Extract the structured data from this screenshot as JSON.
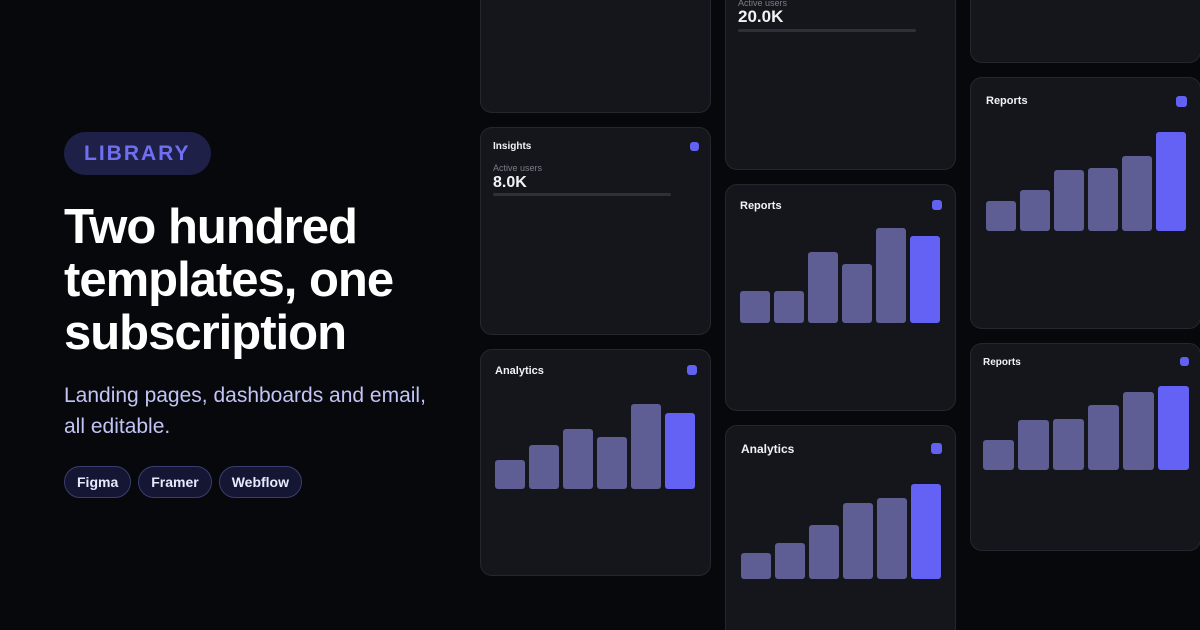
{
  "hero": {
    "badge": "LIBRARY",
    "headline": "Two hundred templates, one subscription",
    "subtitle": "Landing pages, dashboards and email, all editable.",
    "tags": [
      "Figma",
      "Framer",
      "Webflow"
    ]
  },
  "colors": {
    "background": "#07080c",
    "accent": "#6461f5",
    "bar": "#5e5d94",
    "card": "#15161b"
  },
  "cards": [
    {
      "id": "c1"
    },
    {
      "id": "c2",
      "title": "Insights",
      "metric_label": "Active users",
      "metric_value": "8.0K"
    },
    {
      "id": "c3",
      "title": "Analytics",
      "chart_data": {
        "type": "bar",
        "values": [
          30,
          46,
          62,
          54,
          88,
          79
        ]
      }
    },
    {
      "id": "c4",
      "metric_label": "Active users",
      "metric_value": "20.0K"
    },
    {
      "id": "c5",
      "title": "Reports",
      "chart_data": {
        "type": "bar",
        "values": [
          30,
          30,
          67,
          56,
          90,
          82
        ]
      }
    },
    {
      "id": "c6",
      "title": "Analytics",
      "chart_data": {
        "type": "bar",
        "values": [
          24,
          33,
          50,
          70,
          75,
          88
        ]
      }
    },
    {
      "id": "c7"
    },
    {
      "id": "c8",
      "title": "Reports",
      "chart_data": {
        "type": "bar",
        "values": [
          30,
          41,
          62,
          64,
          76,
          100
        ]
      }
    },
    {
      "id": "c9",
      "title": "Reports",
      "chart_data": {
        "type": "bar",
        "values": [
          36,
          59,
          61,
          77,
          93,
          100
        ]
      }
    }
  ]
}
